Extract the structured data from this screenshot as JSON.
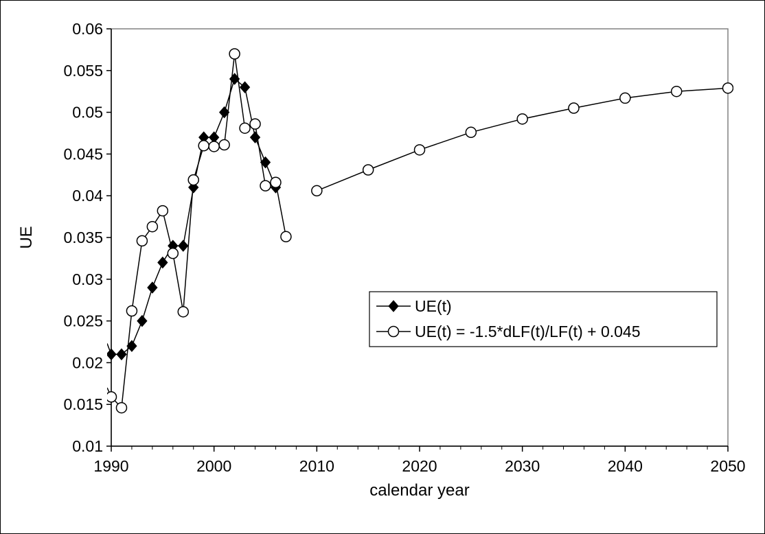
{
  "chart_data": {
    "type": "line",
    "xlabel": "calendar year",
    "ylabel": "UE",
    "xlim": [
      1990,
      2050
    ],
    "ylim": [
      0.01,
      0.06
    ],
    "x_ticks": [
      1990,
      2000,
      2010,
      2020,
      2030,
      2040,
      2050
    ],
    "y_ticks": [
      0.01,
      0.015,
      0.02,
      0.025,
      0.03,
      0.035,
      0.04,
      0.045,
      0.05,
      0.055,
      0.06
    ],
    "x_tick_labels": [
      "1990",
      "2000",
      "2010",
      "2020",
      "2030",
      "2040",
      "2050"
    ],
    "y_tick_labels": [
      "0.01",
      "0.015",
      "0.02",
      "0.025",
      "0.03",
      "0.035",
      "0.04",
      "0.045",
      "0.05",
      "0.055",
      "0.06"
    ],
    "grid": false,
    "legend_position": "center-right",
    "series": [
      {
        "name": "UE(t)",
        "marker": "diamond",
        "color": "#000000",
        "segments": [
          [
            [
              1989.6,
              0.0223
            ],
            [
              1990,
              0.021
            ],
            [
              1991,
              0.021
            ],
            [
              1992,
              0.022
            ],
            [
              1993,
              0.025
            ],
            [
              1994,
              0.029
            ],
            [
              1995,
              0.032
            ],
            [
              1996,
              0.034
            ],
            [
              1997,
              0.034
            ],
            [
              1998,
              0.041
            ],
            [
              1999,
              0.047
            ],
            [
              2000,
              0.047
            ],
            [
              2001,
              0.05
            ],
            [
              2002,
              0.054
            ],
            [
              2003,
              0.053
            ],
            [
              2004,
              0.047
            ],
            [
              2005,
              0.044
            ],
            [
              2006,
              0.041
            ]
          ]
        ]
      },
      {
        "name": "UE(t) = -1.5*dLF(t)/LF(t) + 0.045",
        "marker": "circle-open",
        "color": "#000000",
        "segments": [
          [
            [
              1989.6,
              0.017
            ],
            [
              1990,
              0.0159
            ],
            [
              1991,
              0.0146
            ],
            [
              1992,
              0.0262
            ],
            [
              1993,
              0.0346
            ],
            [
              1994,
              0.0363
            ],
            [
              1995,
              0.0382
            ],
            [
              1996,
              0.0331
            ],
            [
              1997,
              0.0261
            ],
            [
              1998,
              0.0419
            ],
            [
              1999,
              0.046
            ],
            [
              2000,
              0.0459
            ],
            [
              2001,
              0.0461
            ],
            [
              2002,
              0.057
            ],
            [
              2003,
              0.0481
            ],
            [
              2004,
              0.0486
            ],
            [
              2005,
              0.0412
            ],
            [
              2006,
              0.0416
            ],
            [
              2007,
              0.0351
            ]
          ],
          [
            [
              2010,
              0.0406
            ],
            [
              2015,
              0.0431
            ],
            [
              2020,
              0.0455
            ],
            [
              2025,
              0.0476
            ],
            [
              2030,
              0.0492
            ],
            [
              2035,
              0.0505
            ],
            [
              2040,
              0.0517
            ],
            [
              2045,
              0.0525
            ],
            [
              2050,
              0.0529
            ]
          ]
        ]
      }
    ]
  }
}
